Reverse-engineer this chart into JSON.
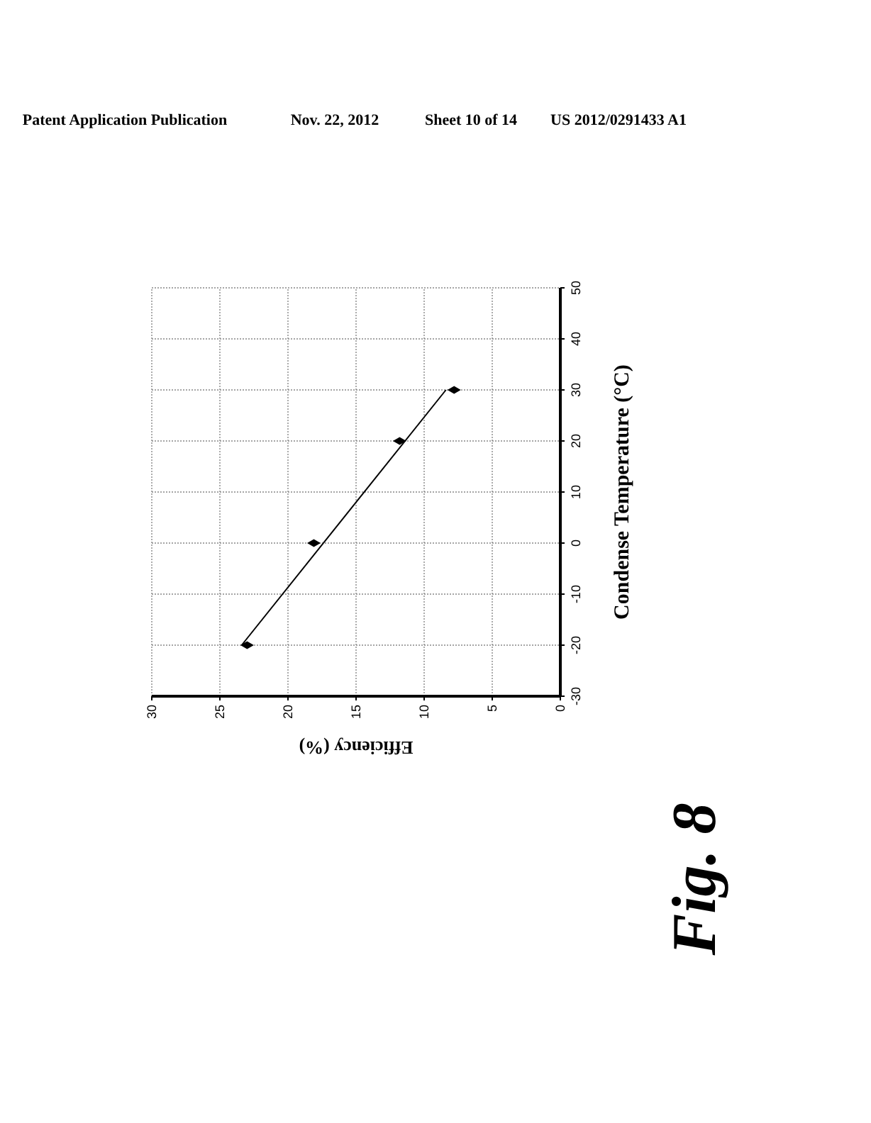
{
  "chart_data": {
    "type": "scatter",
    "xlabel": "Efficiency (%)",
    "ylabel": "Condense Temperature (°C)",
    "annotations": [
      "Patent Application Publication",
      "Nov. 22, 2012",
      "Sheet 10 of 14",
      "US 2012/0291433 A1",
      "Fig. 8"
    ],
    "series": [
      {
        "type": "scatter",
        "color": "#000000",
        "marker": "diamond",
        "x": [
          23.0,
          18.1,
          11.8,
          7.8
        ],
        "values": [
          -20,
          0,
          20,
          30
        ]
      },
      {
        "type": "line",
        "color": "#000000",
        "x": [
          23.4,
          8.4
        ],
        "values": [
          -20,
          30
        ]
      }
    ],
    "xlim": [
      30,
      0
    ],
    "xticks": [
      30,
      25,
      20,
      15,
      10,
      5,
      0
    ],
    "ylim": [
      -30,
      50
    ],
    "yticks": [
      -30,
      -20,
      -10,
      0,
      10,
      20,
      30,
      40,
      50
    ],
    "grid": true
  }
}
